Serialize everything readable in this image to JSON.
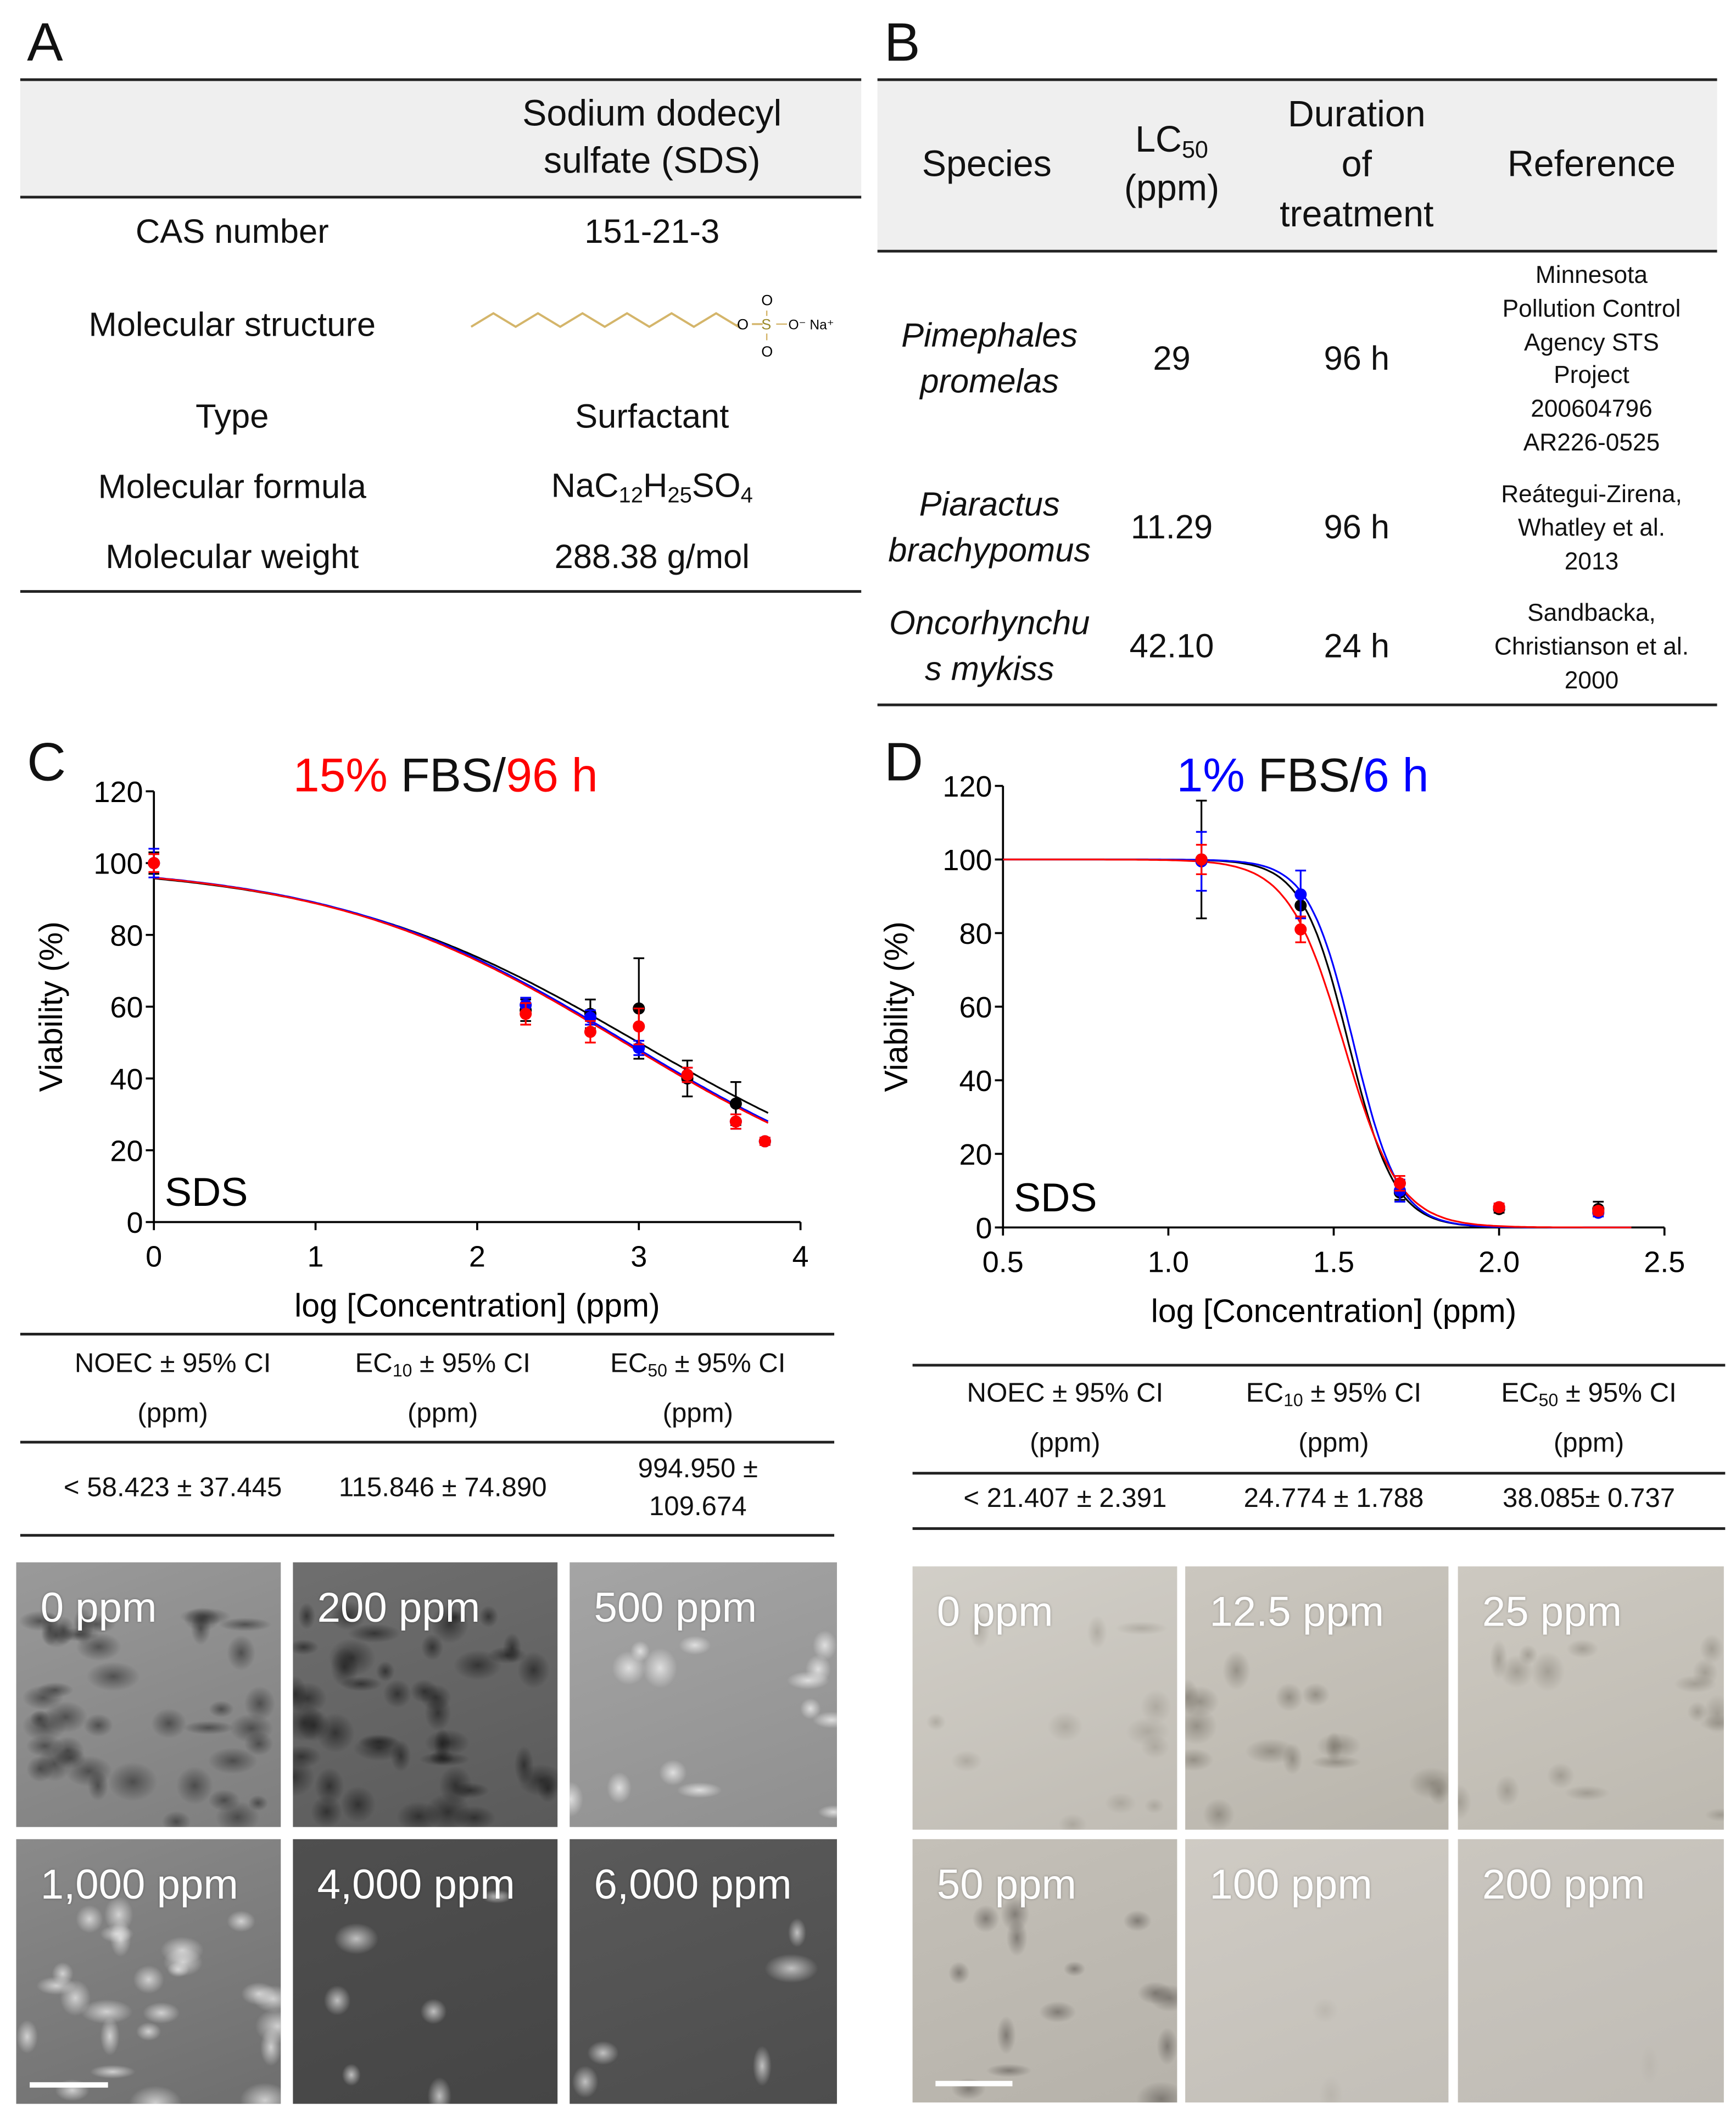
{
  "panels": {
    "a": "A",
    "b": "B",
    "c": "C",
    "d": "D"
  },
  "table_a": {
    "header": [
      "Sodium dodecyl",
      "sulfate (SDS)"
    ],
    "rows": [
      {
        "label": "CAS number",
        "value": "151-21-3"
      },
      {
        "label": "Molecular structure",
        "value": ""
      },
      {
        "label": "Type",
        "value": "Surfactant"
      },
      {
        "label": "Molecular formula",
        "formula": [
          "NaC",
          "12",
          "H",
          "25",
          "SO",
          "4"
        ]
      },
      {
        "label": "Molecular weight",
        "value": "288.38 g/mol"
      }
    ],
    "structure_labels": {
      "o1": "O",
      "s": "S",
      "o2": "O",
      "na": "O⁻ Na⁺",
      "otop": "O",
      "obot": "O"
    }
  },
  "table_b": {
    "headers": {
      "species": "Species",
      "lc50_main": "LC",
      "lc50_sub": "50",
      "lc50_unit": "(ppm)",
      "duration": [
        "Duration",
        "of",
        "treatment"
      ],
      "reference": "Reference"
    },
    "rows": [
      {
        "species": [
          "Pimephales",
          "promelas"
        ],
        "lc50": "29",
        "duration": "96 h",
        "reference": [
          "Minnesota",
          "Pollution  Control",
          "Agency STS",
          "Project",
          "200604796",
          "AR226-0525"
        ]
      },
      {
        "species": [
          "Piaractus",
          "brachypomus"
        ],
        "lc50": "11.29",
        "duration": "96 h",
        "reference": [
          "Reátegui-Zirena,",
          "Whatley et al.",
          "2013"
        ]
      },
      {
        "species": [
          "Oncorhynchu",
          "s mykiss"
        ],
        "lc50": "42.10",
        "duration": "24 h",
        "reference": [
          "Sandbacka,",
          "Christianson et al.",
          "2000"
        ]
      }
    ]
  },
  "chart_c_title": {
    "part1": "15%",
    "part2": " FBS/",
    "part3": "96 h"
  },
  "chart_d_title": {
    "part1": "1%",
    "part2": " FBS/",
    "part3": "6 h"
  },
  "table_c": {
    "headers": [
      {
        "pre": "NOEC",
        "sub": "",
        "post": " ± 95% CI",
        "unit": "(ppm)"
      },
      {
        "pre": "EC",
        "sub": "10",
        "post": " ± 95% CI",
        "unit": "(ppm)"
      },
      {
        "pre": "EC",
        "sub": "50",
        "post": " ± 95% CI",
        "unit": "(ppm)"
      }
    ],
    "values": [
      "< 58.423 ±  37.445",
      "115.846 ± 74.890",
      "994.950 ±",
      "109.674"
    ]
  },
  "table_d": {
    "headers": [
      {
        "pre": "NOEC",
        "sub": "",
        "post": " ± 95% CI",
        "unit": "(ppm)"
      },
      {
        "pre": "EC",
        "sub": "10",
        "post": " ± 95% CI",
        "unit": "(ppm)"
      },
      {
        "pre": "EC",
        "sub": "50",
        "post": " ± 95% CI",
        "unit": "(ppm)"
      }
    ],
    "values": [
      "< 21.407 ± 2.391",
      "24.774 ± 1.788",
      "38.085± 0.737"
    ]
  },
  "images_c": [
    "0 ppm",
    "200 ppm",
    "500 ppm",
    "1,000 ppm",
    "4,000 ppm",
    "6,000 ppm"
  ],
  "images_d": [
    "0 ppm",
    "12.5 ppm",
    "25 ppm",
    "50 ppm",
    "100 ppm",
    "200 ppm"
  ],
  "colors": {
    "red": "#ff0000",
    "blue": "#0000ff",
    "black": "#000000",
    "sds_chain": "#d4b56a"
  },
  "chart_data": [
    {
      "type": "scatter",
      "title": "15% FBS/96 h",
      "xlabel": "log [Concentration] (ppm)",
      "ylabel": "Viability (%)",
      "annotation": "SDS",
      "xlim": [
        0,
        4
      ],
      "ylim": [
        0,
        120
      ],
      "xticks": [
        "0",
        "1",
        "2",
        "3",
        "4"
      ],
      "xtick_values": [
        0,
        1,
        2,
        3,
        4
      ],
      "yticks": [
        "0",
        "20",
        "40",
        "60",
        "80",
        "100",
        "120"
      ],
      "ytick_values": [
        0,
        20,
        40,
        60,
        80,
        100,
        120
      ],
      "x": [
        0,
        2.3,
        2.7,
        3.0,
        3.3,
        3.6,
        3.78
      ],
      "series": [
        {
          "name": "black",
          "color": "#000000",
          "values": [
            100,
            59,
            58,
            59.5,
            40,
            33,
            22.5
          ],
          "errors": [
            3,
            3,
            4,
            14,
            5,
            6,
            1
          ],
          "fit": {
            "logEC50": 3.0,
            "hill": 0.45
          }
        },
        {
          "name": "blue",
          "color": "#0000ff",
          "values": [
            100,
            60.5,
            57,
            48.5,
            41,
            28,
            22.5
          ],
          "errors": [
            4,
            2,
            2,
            2,
            2,
            2,
            1
          ],
          "fit": {
            "logEC50": 2.93,
            "hill": 0.47
          }
        },
        {
          "name": "red",
          "color": "#ff0000",
          "values": [
            100,
            58,
            53,
            54.5,
            41,
            28,
            22.5
          ],
          "errors": [
            2.5,
            3,
            3,
            5,
            2,
            2,
            1
          ],
          "fit": {
            "logEC50": 2.91,
            "hill": 0.47
          }
        }
      ]
    },
    {
      "type": "scatter",
      "title": "1% FBS/6 h",
      "xlabel": "log [Concentration] (ppm)",
      "ylabel": "Viability (%)",
      "annotation": "SDS",
      "xlim": [
        0.5,
        2.5
      ],
      "ylim": [
        0,
        120
      ],
      "xticks": [
        "0.5",
        "1.0",
        "1.5",
        "2.0",
        "2.5"
      ],
      "xtick_values": [
        0.5,
        1.0,
        1.5,
        2.0,
        2.5
      ],
      "yticks": [
        "0",
        "20",
        "40",
        "60",
        "80",
        "100",
        "120"
      ],
      "ytick_values": [
        0,
        20,
        40,
        60,
        80,
        100,
        120
      ],
      "x": [
        1.1,
        1.4,
        1.7,
        2.0,
        2.3
      ],
      "series": [
        {
          "name": "black",
          "color": "#000000",
          "values": [
            100,
            87.5,
            9.5,
            5,
            5
          ],
          "errors": [
            16,
            3,
            2,
            1,
            2
          ],
          "fit": {
            "logEC50": 1.545,
            "hill": 6.2
          }
        },
        {
          "name": "blue",
          "color": "#0000ff",
          "values": [
            99.5,
            90.5,
            10,
            5.5,
            4
          ],
          "errors": [
            8,
            6.5,
            3,
            1,
            1
          ],
          "fit": {
            "logEC50": 1.56,
            "hill": 6.4
          }
        },
        {
          "name": "red",
          "color": "#ff0000",
          "values": [
            100,
            81,
            12,
            5.5,
            4.5
          ],
          "errors": [
            4,
            3.5,
            2,
            1,
            1
          ],
          "fit": {
            "logEC50": 1.53,
            "hill": 5.2
          }
        }
      ]
    }
  ]
}
